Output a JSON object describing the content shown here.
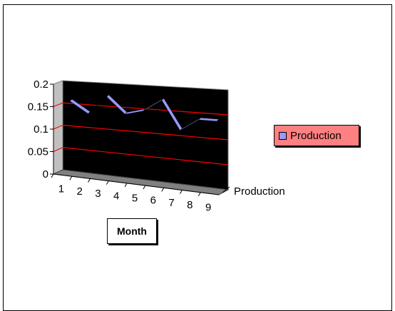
{
  "chart_data": {
    "type": "line",
    "categories": [
      "1",
      "2",
      "3",
      "4",
      "5",
      "6",
      "7",
      "8",
      "9"
    ],
    "series": [
      {
        "name": "Production",
        "values": [
          0.16,
          0.135,
          0.175,
          0.14,
          0.15,
          0.175,
          0.115,
          0.14,
          0.14
        ]
      }
    ],
    "y_ticks": [
      "0",
      "0.05",
      "0.1",
      "0.15",
      "0.2"
    ],
    "ylim": [
      0,
      0.2
    ],
    "xlabel": "Month",
    "depth_label": "Production",
    "legend_label": "Production",
    "legend_position": "right",
    "colors": {
      "plot_bg": "#000000",
      "gridline": "#ff0000",
      "series": "#9999ff",
      "floor": "#808080",
      "legend_bg": "#ff8080"
    },
    "grid": true
  }
}
